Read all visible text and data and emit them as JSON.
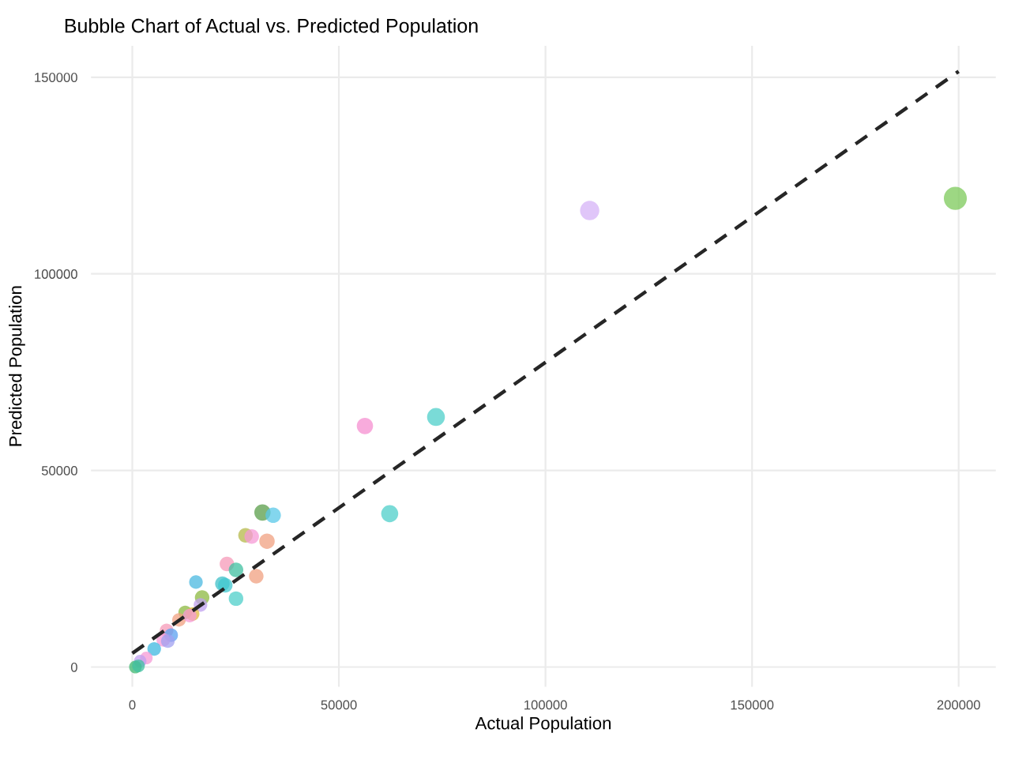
{
  "chart_data": {
    "type": "bubble",
    "title": "Bubble Chart of Actual vs. Predicted Population",
    "xlabel": "Actual Population",
    "ylabel": "Predicted Population",
    "xlim": [
      -10000,
      209000
    ],
    "ylim": [
      -5000,
      158000
    ],
    "xticks": [
      0,
      50000,
      100000,
      150000,
      200000
    ],
    "yticks": [
      0,
      50000,
      100000,
      150000
    ],
    "grid": true,
    "legend": false,
    "series": [
      {
        "x": [
          199200,
          110700,
          73500,
          56300,
          62300,
          31500,
          34100,
          27400,
          28900,
          32600,
          22900,
          25100,
          30000,
          21800,
          22500,
          25100,
          15400,
          16900,
          16500,
          12800,
          14600,
          11300,
          13900,
          8300,
          9400,
          7500,
          8600,
          5300,
          3400,
          1900,
          750,
          1500
        ],
        "values": [
          119200,
          116100,
          63600,
          61300,
          39000,
          39300,
          38600,
          33500,
          33200,
          32000,
          26200,
          24700,
          23100,
          21200,
          20800,
          17400,
          21600,
          17700,
          15800,
          13900,
          13500,
          12000,
          13100,
          9300,
          8100,
          6900,
          6600,
          4600,
          2300,
          1500,
          0,
          300
        ],
        "sizes": [
          1,
          0.7,
          0.6,
          0.5,
          0.55,
          0.5,
          0.45,
          0.4,
          0.4,
          0.45,
          0.4,
          0.4,
          0.4,
          0.4,
          0.4,
          0.4,
          0.35,
          0.4,
          0.35,
          0.35,
          0.35,
          0.35,
          0.35,
          0.35,
          0.35,
          0.35,
          0.35,
          0.35,
          0.3,
          0.3,
          0.3,
          0.3
        ],
        "colors": [
          "#7cc95a",
          "#d6b3f7",
          "#4dcfc9",
          "#f58fd0",
          "#4dcfc9",
          "#5a9e4a",
          "#5ac8e8",
          "#b5b84a",
          "#f59ad6",
          "#f0a080",
          "#f59ab8",
          "#3fc0a0",
          "#f0a080",
          "#3fc0c8",
          "#40c8d0",
          "#4dcfc9",
          "#4ab8e0",
          "#8cb840",
          "#c0a0f0",
          "#8cb840",
          "#e0b840",
          "#f0a080",
          "#f59ad6",
          "#f59ab8",
          "#5aa0f0",
          "#f59ad6",
          "#a0a0f0",
          "#3fb8e0",
          "#f59ad6",
          "#c0a0f0",
          "#3fb870",
          "#3fc0a0"
        ]
      },
      {
        "type": "line",
        "x": [
          0,
          200000
        ],
        "values": [
          3500,
          151500
        ],
        "color": "#262626",
        "line_style": "dashed",
        "marker": "none"
      }
    ]
  }
}
